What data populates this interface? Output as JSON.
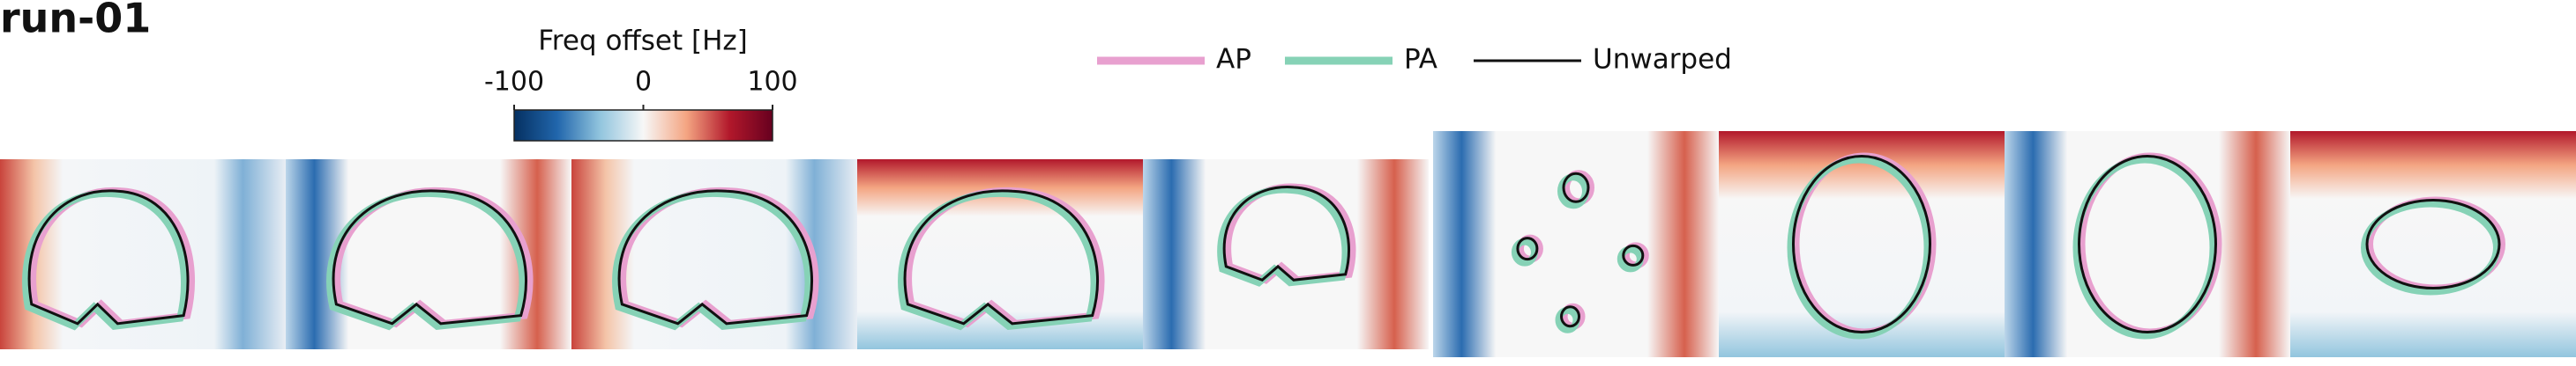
{
  "chart_data": {
    "type": "heatmap",
    "title": "run-01",
    "colorbar": {
      "label": "Freq offset [Hz]",
      "lim": [
        -100,
        100
      ],
      "ticks": [
        -100,
        0,
        100
      ],
      "colors": [
        "#053061",
        "#2166ac",
        "#92c5de",
        "#f7f7f7",
        "#f4a582",
        "#b2182b",
        "#67001f"
      ]
    },
    "legend": [
      {
        "name": "AP",
        "color": "#e8a0cf"
      },
      {
        "name": "PA",
        "color": "#86d2b6"
      },
      {
        "name": "Unwarped",
        "color": "#111111"
      }
    ]
  }
}
